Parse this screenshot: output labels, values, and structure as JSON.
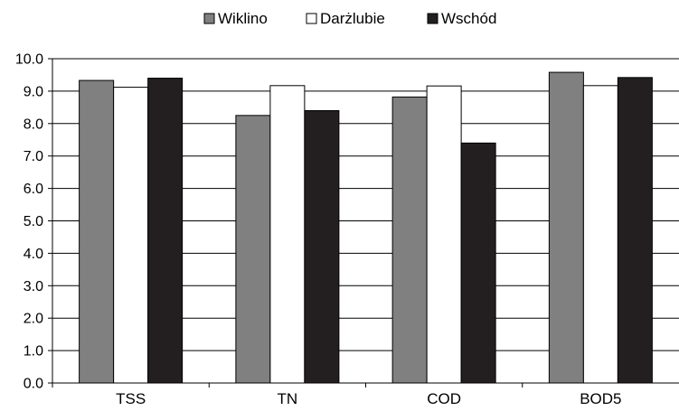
{
  "chart_data": {
    "type": "bar",
    "categories": [
      "TSS",
      "TN",
      "COD",
      "BOD5"
    ],
    "series": [
      {
        "name": "Wiklino",
        "values": [
          9.33,
          8.25,
          8.82,
          9.58
        ],
        "color": "#808080"
      },
      {
        "name": "Darżlubie",
        "values": [
          9.12,
          9.17,
          9.16,
          9.17
        ],
        "color": "#ffffff"
      },
      {
        "name": "Wschód",
        "values": [
          9.4,
          8.4,
          7.4,
          9.42
        ],
        "color": "#231f20"
      }
    ],
    "ylim": [
      0,
      10
    ],
    "yticks": [
      "0.0",
      "1.0",
      "2.0",
      "3.0",
      "4.0",
      "5.0",
      "6.0",
      "7.0",
      "8.0",
      "9.0",
      "10.0"
    ],
    "grid": true,
    "legend_position": "top"
  }
}
